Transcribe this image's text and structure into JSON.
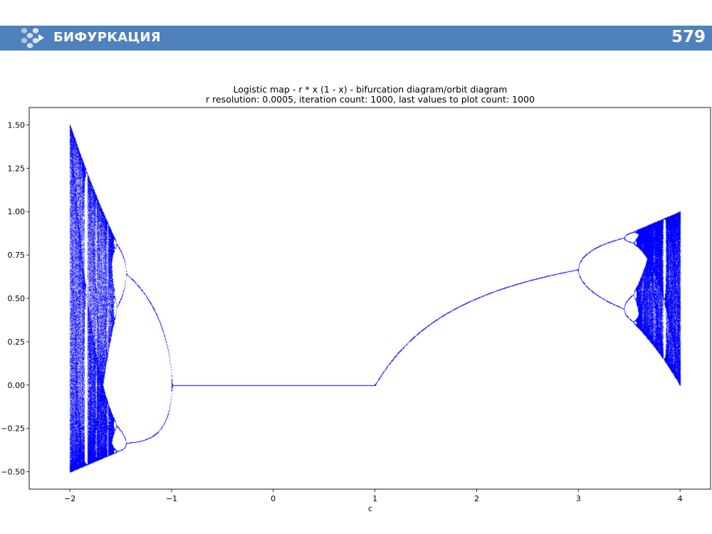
{
  "header": {
    "title": "БИФУРКАЦИЯ",
    "page_number": "579",
    "bar_color": "#4f81bd",
    "logo_icon": "hexagon-cluster-arrow-icon"
  },
  "chart_data": {
    "type": "scatter",
    "title": "Logistic map - r * x (1 - x) - bifurcation diagram/orbit diagram",
    "subtitle": "r resolution: 0.0005, iteration count: 1000, last values to plot count: 1000",
    "xlabel": "c",
    "ylabel": "",
    "xlim": [
      -2.4,
      4.3
    ],
    "ylim": [
      -0.6,
      1.6
    ],
    "x_ticks": [
      -2,
      -1,
      0,
      1,
      2,
      3,
      4
    ],
    "x_tick_labels": [
      "−2",
      "−1",
      "0",
      "1",
      "2",
      "3",
      "4"
    ],
    "y_ticks": [
      -0.5,
      -0.25,
      0.0,
      0.25,
      0.5,
      0.75,
      1.0,
      1.25,
      1.5
    ],
    "y_tick_labels": [
      "−0.50",
      "−0.25",
      "0.00",
      "0.25",
      "0.50",
      "0.75",
      "1.00",
      "1.25",
      "1.50"
    ],
    "grid": false,
    "legend": "none",
    "marker_color": "#0000ff",
    "r_range": [
      -2.0,
      4.0
    ],
    "r_resolution": 0.0005,
    "iterations": 1000,
    "last_values": 1000
  }
}
